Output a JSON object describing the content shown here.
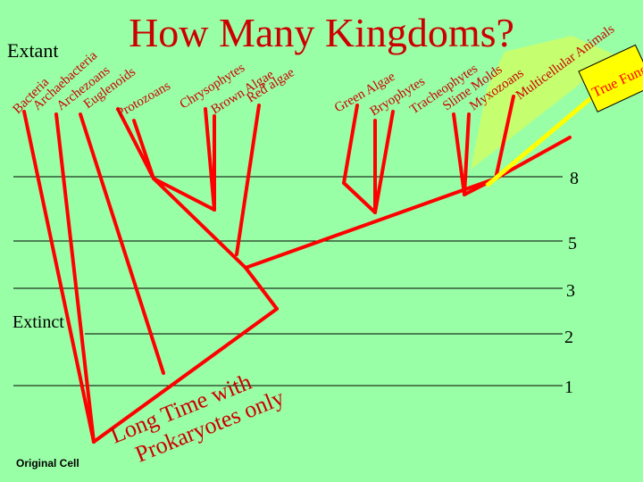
{
  "title": "How Many Kingdoms?",
  "extant_label": "Extant",
  "extinct_label": "Extinct",
  "original_cell_label": "Original Cell",
  "long_time_caption": {
    "line1": "Long Time with",
    "line2": "Prokaryotes only"
  },
  "kingdom_counts": [
    "8",
    "5",
    "3",
    "2",
    "1"
  ],
  "taxa": [
    "Bacteria",
    "Archaebacteria",
    "Archezoans",
    "Euglenoids",
    "Protozoans",
    "Chrysophytes",
    "Brown Algae",
    "Red algae",
    "Green Algae",
    "Bryophytes",
    "Tracheophytes",
    "Slime Molds",
    "Myxozoans",
    "Multicellular Animals",
    "True Fungi"
  ],
  "colors": {
    "background": "#99ffa6",
    "tree": "#ff0000",
    "title": "#cc0000",
    "highlight_fan": "#ccff66",
    "fungi_box": "#ffff00",
    "fungi_text": "#ff0000",
    "line": "#000000"
  }
}
